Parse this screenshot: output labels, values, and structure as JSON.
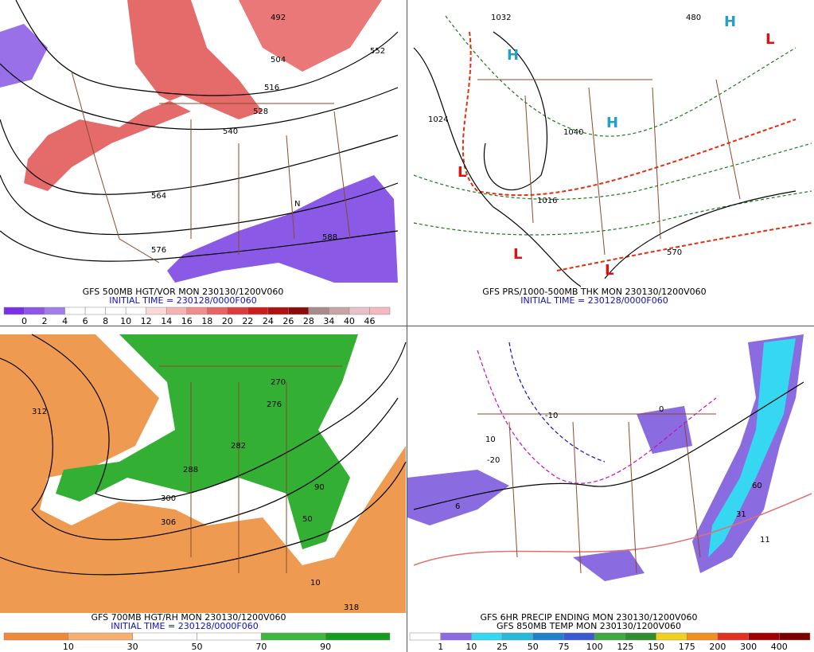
{
  "panels": [
    {
      "caption": "GFS 500MB HGT/VOR MON 230130/1200V060",
      "subcaption": "INITIAL TIME = 230128/0000F060",
      "map_labels": [
        "492",
        "504",
        "516",
        "528",
        "540",
        "552",
        "564",
        "576",
        "588",
        "N"
      ],
      "colorbar": {
        "labels": [
          "0",
          "2",
          "4",
          "6",
          "8",
          "10",
          "12",
          "14",
          "16",
          "18",
          "20",
          "22",
          "24",
          "26",
          "28",
          "34",
          "40",
          "46"
        ],
        "colors": [
          "#7b30e6",
          "#8e55e8",
          "#a37ee8",
          "#ffffff",
          "#ffffff",
          "#ffffff",
          "#ffffff",
          "#fcd9d9",
          "#f6b3b3",
          "#ef8c8c",
          "#e66464",
          "#dc3c3c",
          "#cc1e1e",
          "#b01010",
          "#8c0a0a",
          "#a88a8a",
          "#c8a4a4",
          "#e8c0c8",
          "#f4b8c0"
        ]
      }
    },
    {
      "caption": "GFS PRS/1000-500MB THK MON 230130/1200V060",
      "subcaption": "INITIAL TIME = 230128/0000F060",
      "map_labels": [
        "H",
        "L",
        "1016",
        "1024",
        "1032",
        "1040",
        "570",
        "480"
      ]
    },
    {
      "caption": "GFS 700MB HGT/RH MON 230130/1200V060",
      "subcaption": "INITIAL TIME = 230128/0000F060",
      "map_labels": [
        "270",
        "276",
        "282",
        "288",
        "300",
        "306",
        "312",
        "318",
        "10",
        "50",
        "90"
      ],
      "colorbar": {
        "labels": [
          "10",
          "30",
          "50",
          "70",
          "90"
        ],
        "colors": [
          "#ee8a3a",
          "#f5b070",
          "#ffffff",
          "#ffffff",
          "#3db83d",
          "#169a21"
        ]
      }
    },
    {
      "caption": "GFS 6HR PRECIP ENDING MON 230130/1200V060",
      "subcaption": "GFS 850MB TEMP MON 230130/1200V060",
      "map_labels": [
        "-10",
        "-20",
        "0",
        "10",
        "6",
        "11",
        "31",
        "60"
      ],
      "colorbar": {
        "labels": [
          "1",
          "10",
          "25",
          "50",
          "75",
          "100",
          "125",
          "150",
          "175",
          "200",
          "300",
          "400"
        ],
        "colors": [
          "#ffffff",
          "#8a6be0",
          "#35d8f0",
          "#28b8d8",
          "#2080c8",
          "#3a5ad0",
          "#3fa93f",
          "#2f8f2f",
          "#f0d020",
          "#f09020",
          "#e03020",
          "#a00000",
          "#7a0000"
        ]
      }
    }
  ]
}
